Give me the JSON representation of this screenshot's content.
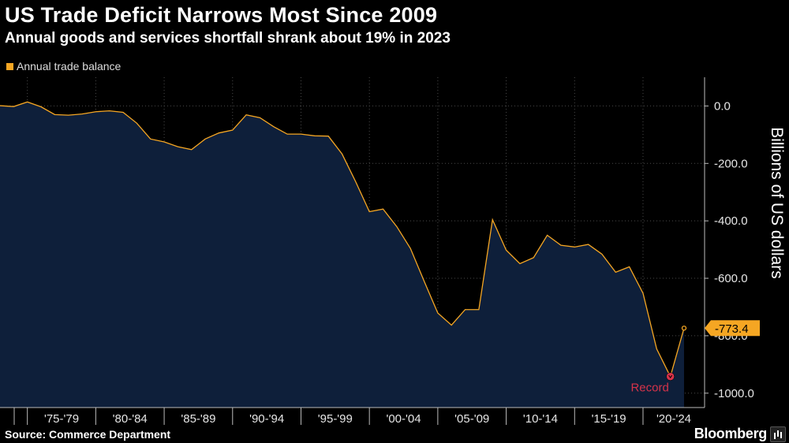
{
  "header": {
    "title": "US Trade Deficit Narrows Most Since 2009",
    "subtitle": "Annual goods and services shortfall shrank about 19% in 2023"
  },
  "legend": {
    "label": "Annual trade balance"
  },
  "footer": {
    "source": "Source: Commerce Department",
    "brand": "Bloomberg"
  },
  "colors": {
    "line": "#f5a623",
    "area": "#0e1f3a",
    "grid": "#4a4a4a",
    "record": "#d6334a",
    "callout_bg": "#f5a623"
  },
  "chart_data": {
    "type": "area",
    "ylabel": "Billions of US dollars",
    "ylim": [
      -1050,
      100
    ],
    "yticks": [
      0,
      -200,
      -400,
      -600,
      -800,
      -1000
    ],
    "ytick_labels": [
      "0.0",
      "-200.0",
      "-400.0",
      "-600.0",
      "-800.0",
      "-1000.0"
    ],
    "xlim": [
      1973,
      2024.5
    ],
    "x_groups": [
      {
        "label": "'75-'79",
        "start": 1975,
        "end": 1980
      },
      {
        "label": "'80-'84",
        "start": 1980,
        "end": 1985
      },
      {
        "label": "'85-'89",
        "start": 1985,
        "end": 1990
      },
      {
        "label": "'90-'94",
        "start": 1990,
        "end": 1995
      },
      {
        "label": "'95-'99",
        "start": 1995,
        "end": 2000
      },
      {
        "label": "'00-'04",
        "start": 2000,
        "end": 2005
      },
      {
        "label": "'05-'09",
        "start": 2005,
        "end": 2010
      },
      {
        "label": "'10-'14",
        "start": 2010,
        "end": 2015
      },
      {
        "label": "'15-'19",
        "start": 2015,
        "end": 2020
      },
      {
        "label": "'20-'24",
        "start": 2020,
        "end": 2025
      }
    ],
    "grid": true,
    "legend_position": "top-left",
    "series": [
      {
        "name": "Annual trade balance",
        "x": [
          1973,
          1974,
          1975,
          1976,
          1977,
          1978,
          1979,
          1980,
          1981,
          1982,
          1983,
          1984,
          1985,
          1986,
          1987,
          1988,
          1989,
          1990,
          1991,
          1992,
          1993,
          1994,
          1995,
          1996,
          1997,
          1998,
          1999,
          2000,
          2001,
          2002,
          2003,
          2004,
          2005,
          2006,
          2007,
          2008,
          2009,
          2010,
          2011,
          2012,
          2013,
          2014,
          2015,
          2016,
          2017,
          2018,
          2019,
          2020,
          2021,
          2022,
          2023
        ],
        "values": [
          1,
          -2,
          14,
          -3,
          -30,
          -32,
          -28,
          -20,
          -17,
          -22,
          -60,
          -115,
          -125,
          -142,
          -152,
          -115,
          -94,
          -84,
          -31,
          -41,
          -72,
          -98,
          -98,
          -104,
          -105,
          -167,
          -264,
          -368,
          -359,
          -420,
          -496,
          -610,
          -721,
          -763,
          -709,
          -709,
          -396,
          -502,
          -549,
          -528,
          -450,
          -485,
          -491,
          -482,
          -516,
          -579,
          -560,
          -652,
          -846,
          -942,
          -773.4
        ]
      }
    ],
    "annotations": [
      {
        "type": "callout",
        "x": 2023,
        "value": -773.4,
        "label": "-773.4"
      },
      {
        "type": "marker",
        "x": 2022,
        "value": -942,
        "label": "Record"
      }
    ]
  }
}
